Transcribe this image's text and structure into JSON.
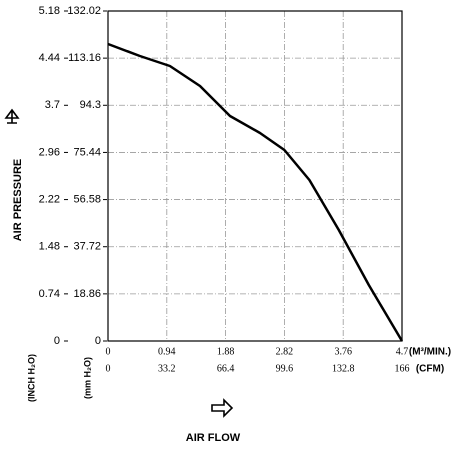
{
  "chart_data": {
    "type": "line",
    "x_label": "AIR FLOW",
    "y_label": "AIR PRESSURE",
    "x_unit": "(M³/MIN.)",
    "x2_unit": "(CFM)",
    "y_unit": "(mm H₂O)",
    "y2_unit": "(INCH H₂O)",
    "xlim": [
      0,
      4.7
    ],
    "xticks": [
      0,
      0.94,
      1.88,
      2.82,
      3.76,
      4.7
    ],
    "x2lim": [
      0,
      166
    ],
    "x2ticks": [
      0,
      33.2,
      66.4,
      99.6,
      132.8,
      166
    ],
    "ylim": [
      0,
      132.02
    ],
    "yticks": [
      0,
      18.86,
      37.72,
      56.58,
      75.44,
      94.3,
      113.16,
      132.02
    ],
    "y2lim": [
      0,
      5.18
    ],
    "y2ticks": [
      0,
      0.74,
      1.48,
      2.22,
      2.96,
      3.7,
      4.44,
      5.18
    ],
    "x": [
      0,
      0.51,
      0.99,
      1.47,
      1.95,
      2.43,
      2.82,
      3.22,
      3.69,
      4.17,
      4.7
    ],
    "series": [
      {
        "color": "#000000",
        "values": [
          118.8,
          114,
          110,
          102,
          90,
          83.2,
          76.4,
          64.4,
          44.4,
          22.4,
          0
        ]
      }
    ],
    "grid": true
  }
}
